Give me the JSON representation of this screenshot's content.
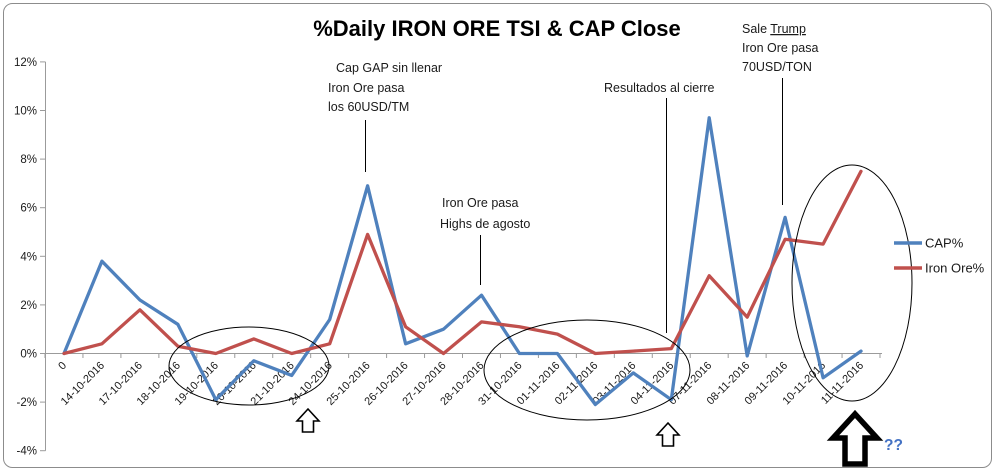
{
  "window": {
    "background": "#ffffff",
    "frame_border_color": "#8c8c8c",
    "axis_color": "#9b9b9b",
    "text_color": "#1a1a1a"
  },
  "chart_data": {
    "type": "line",
    "title": "%Daily IRON ORE TSI & CAP Close",
    "xlabel": "",
    "ylabel": "",
    "grid": false,
    "legend_position": "right",
    "ylim": [
      -4,
      12
    ],
    "ytick_percent": [
      12,
      10,
      8,
      6,
      4,
      2,
      0,
      -2,
      -4
    ],
    "ytick_labels": [
      "12%",
      "10%",
      "8%",
      "6%",
      "4%",
      "2%",
      "0%",
      "-2%",
      "-4%"
    ],
    "categories": [
      "0",
      "14-10-2016",
      "17-10-2016",
      "18-10-2016",
      "19-10-2016",
      "20-10-2016",
      "21-10-2016",
      "24-10-2016",
      "25-10-2016",
      "26-10-2016",
      "27-10-2016",
      "28-10-2016",
      "31-10-2016",
      "01-11-2016",
      "02-11-2016",
      "03-11-2016",
      "04-11-2016",
      "07-11-2016",
      "08-11-2016",
      "09-11-2016",
      "10-11-2016",
      "11-11-2016"
    ],
    "series": [
      {
        "name": "CAP%",
        "color": "#4F81BD",
        "values": [
          0,
          3.8,
          2.2,
          1.2,
          -1.9,
          -0.3,
          -0.9,
          1.4,
          6.9,
          0.4,
          1.0,
          2.4,
          0.0,
          0.0,
          -2.1,
          -0.8,
          -1.9,
          9.7,
          -0.1,
          5.6,
          -1.0,
          0.1
        ]
      },
      {
        "name": "Iron Ore%",
        "color": "#C0504D",
        "values": [
          0,
          0.4,
          1.8,
          0.3,
          0.0,
          0.6,
          0.0,
          0.4,
          4.9,
          1.1,
          0.0,
          1.3,
          1.1,
          0.8,
          0.0,
          0.1,
          0.2,
          3.2,
          1.5,
          4.7,
          4.5,
          7.5
        ]
      }
    ]
  },
  "annotations": [
    {
      "id": "cap-gap-sin-llenar",
      "lines": [
        [
          {
            "t": "Cap GAP sin llenar"
          }
        ],
        [
          {
            "t": "Iron Ore pasa"
          }
        ],
        [
          {
            "t": "los 60USD/TM"
          }
        ]
      ]
    },
    {
      "id": "iron-ore-highs-agosto",
      "lines": [
        [
          {
            "t": "Iron Ore pasa"
          }
        ],
        [
          {
            "t": "Highs de agosto"
          }
        ]
      ]
    },
    {
      "id": "resultados-al-cierre",
      "lines": [
        [
          {
            "t": "Resultados al cierre"
          }
        ]
      ]
    },
    {
      "id": "sale-trump",
      "lines": [
        [
          {
            "t": "Sale "
          },
          {
            "t": "Trump",
            "u": true
          }
        ],
        [
          {
            "t": "Iron Ore pasa"
          }
        ],
        [
          {
            "t": "70USD/TON"
          }
        ]
      ]
    }
  ],
  "callouts": {
    "question_marks": "??",
    "question_marks_color": "#4472C4"
  }
}
